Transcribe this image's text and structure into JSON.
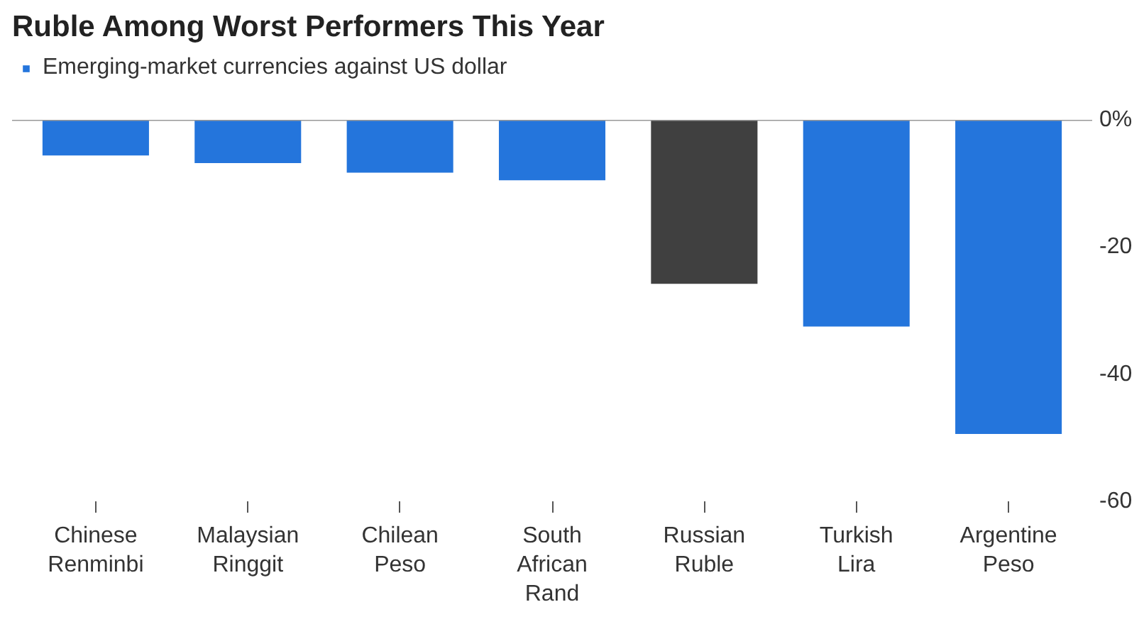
{
  "chart_data": {
    "type": "bar",
    "title": "Ruble Among Worst Performers This Year",
    "categories": [
      "Chinese Renminbi",
      "Malaysian Ringgit",
      "Chilean Peso",
      "South African Rand",
      "Russian Ruble",
      "Turkish Lira",
      "Argentine Peso"
    ],
    "series": [
      {
        "name": "Emerging-market currencies against US dollar",
        "color": "#2475dc",
        "colors": [
          "#2475dc",
          "#2475dc",
          "#2475dc",
          "#2475dc",
          "#404040",
          "#2475dc",
          "#2475dc"
        ],
        "values": [
          -5.6,
          -6.8,
          -8.3,
          -9.5,
          -25.8,
          -32.5,
          -49.4
        ]
      }
    ],
    "ylim": [
      -60,
      0
    ],
    "yticks": [
      {
        "value": 0,
        "label": "0%"
      },
      -20,
      -40,
      -60
    ],
    "ref_lines": [
      {
        "axis": "y",
        "value": 0,
        "label": null,
        "color": "#999999"
      }
    ],
    "grid": false,
    "legend": "top left"
  }
}
